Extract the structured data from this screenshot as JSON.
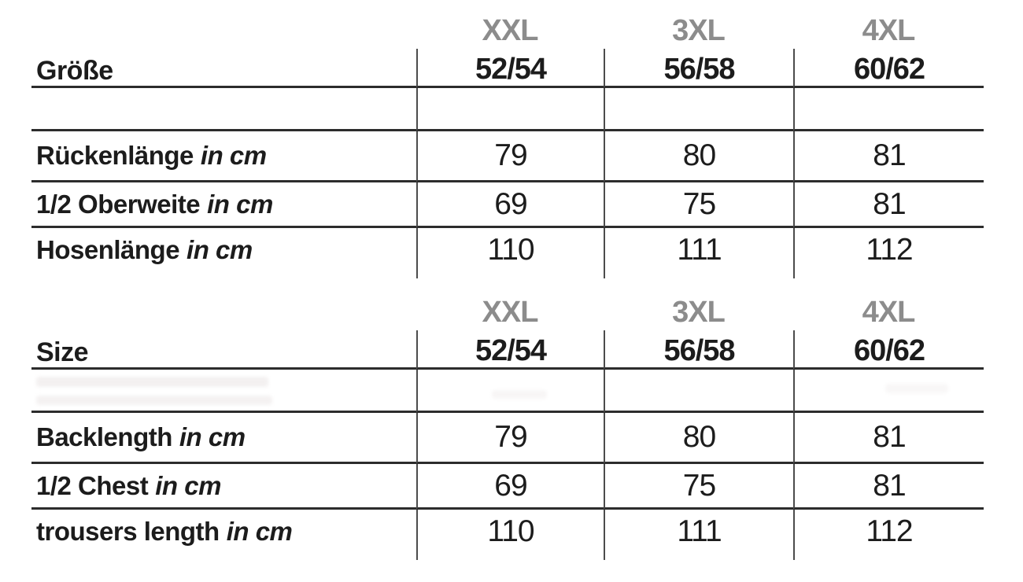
{
  "colors": {
    "background": "#ffffff",
    "text": "#1c1c1c",
    "size_label_gray": "#8c8c8c",
    "horizontal_rule": "#2c2c2c",
    "vertical_rule": "#4c4c4c"
  },
  "tables": [
    {
      "language": "german",
      "header_label": "Größe",
      "columns": [
        {
          "size": "XXL",
          "range": "52/54"
        },
        {
          "size": "3XL",
          "range": "56/58"
        },
        {
          "size": "4XL",
          "range": "60/62"
        }
      ],
      "rows": [
        {
          "label": "Rückenlänge",
          "unit": "in cm",
          "values": [
            "79",
            "80",
            "81"
          ]
        },
        {
          "label": "1/2 Oberweite",
          "unit": "in cm",
          "values": [
            "69",
            "75",
            "81"
          ]
        },
        {
          "label": "Hosenlänge",
          "unit": "in cm",
          "values": [
            "110",
            "111",
            "112"
          ]
        }
      ]
    },
    {
      "language": "english",
      "header_label": "Size",
      "columns": [
        {
          "size": "XXL",
          "range": "52/54"
        },
        {
          "size": "3XL",
          "range": "56/58"
        },
        {
          "size": "4XL",
          "range": "60/62"
        }
      ],
      "rows": [
        {
          "label": "Backlength",
          "unit": "in cm",
          "values": [
            "79",
            "80",
            "81"
          ]
        },
        {
          "label": "1/2 Chest",
          "unit": "in cm",
          "values": [
            "69",
            "75",
            "81"
          ]
        },
        {
          "label": "trousers length",
          "unit": "in cm",
          "values": [
            "110",
            "111",
            "112"
          ]
        }
      ]
    }
  ],
  "chart_data": [
    {
      "type": "table",
      "title": "Größe (German size chart)",
      "columns": [
        "XXL 52/54",
        "3XL 56/58",
        "4XL 60/62"
      ],
      "rows": [
        {
          "label": "Rückenlänge in cm",
          "values": [
            79,
            80,
            81
          ]
        },
        {
          "label": "1/2 Oberweite in cm",
          "values": [
            69,
            75,
            81
          ]
        },
        {
          "label": "Hosenlänge in cm",
          "values": [
            110,
            111,
            112
          ]
        }
      ]
    },
    {
      "type": "table",
      "title": "Size (English size chart)",
      "columns": [
        "XXL 52/54",
        "3XL 56/58",
        "4XL 60/62"
      ],
      "rows": [
        {
          "label": "Backlength in cm",
          "values": [
            79,
            80,
            81
          ]
        },
        {
          "label": "1/2 Chest in cm",
          "values": [
            69,
            75,
            81
          ]
        },
        {
          "label": "trousers length in cm",
          "values": [
            110,
            111,
            112
          ]
        }
      ]
    }
  ]
}
